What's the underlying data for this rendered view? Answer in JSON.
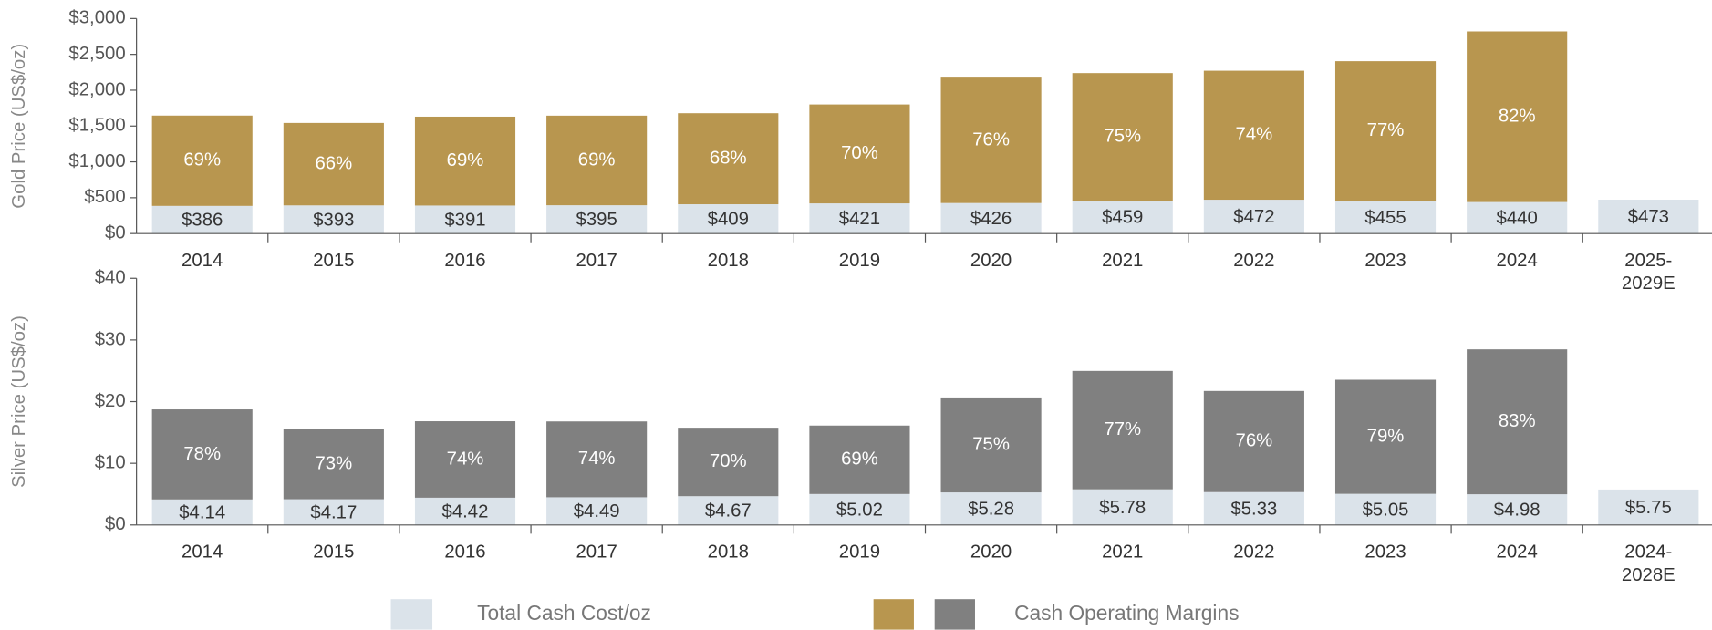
{
  "chart_data": [
    {
      "type": "stacked_bar",
      "ylabel": "Gold Price (US$/oz)",
      "categories": [
        "2014",
        "2015",
        "2016",
        "2017",
        "2018",
        "2019",
        "2020",
        "2021",
        "2022",
        "2023",
        "2024",
        "2025-\n2029E"
      ],
      "ylim": [
        0,
        3000
      ],
      "yticks": [
        {
          "value": 0,
          "label": "$0"
        },
        {
          "value": 500,
          "label": "$500"
        },
        {
          "value": 1000,
          "label": "$1,000"
        },
        {
          "value": 1500,
          "label": "$1,500"
        },
        {
          "value": 2000,
          "label": "$2,000"
        },
        {
          "value": 2500,
          "label": "$2,500"
        },
        {
          "value": 3000,
          "label": "$3,000"
        }
      ],
      "series": [
        {
          "name": "Total Cash Cost/oz",
          "color": "#dbe3ea",
          "values": [
            386,
            393,
            391,
            395,
            409,
            421,
            426,
            459,
            472,
            455,
            440,
            473
          ],
          "value_labels": [
            "$386",
            "$393",
            "$391",
            "$395",
            "$409",
            "$421",
            "$426",
            "$459",
            "$472",
            "$455",
            "$440",
            "$473"
          ]
        },
        {
          "name": "Cash Operating Margins",
          "color": "#b8964f",
          "values": [
            1260,
            1150,
            1240,
            1250,
            1270,
            1380,
            1750,
            1780,
            1800,
            1950,
            2380,
            null
          ],
          "percent_labels": [
            "69%",
            "66%",
            "69%",
            "69%",
            "68%",
            "70%",
            "76%",
            "75%",
            "74%",
            "77%",
            "82%",
            null
          ]
        }
      ]
    },
    {
      "type": "stacked_bar",
      "ylabel": "Silver Price (US$/oz)",
      "categories": [
        "2014",
        "2015",
        "2016",
        "2017",
        "2018",
        "2019",
        "2020",
        "2021",
        "2022",
        "2023",
        "2024",
        "2024-\n2028E"
      ],
      "ylim": [
        0,
        40
      ],
      "yticks": [
        {
          "value": 0,
          "label": "$0"
        },
        {
          "value": 10,
          "label": "$10"
        },
        {
          "value": 20,
          "label": "$20"
        },
        {
          "value": 30,
          "label": "$30"
        },
        {
          "value": 40,
          "label": "$40"
        }
      ],
      "series": [
        {
          "name": "Total Cash Cost/oz",
          "color": "#dbe3ea",
          "values": [
            4.14,
            4.17,
            4.42,
            4.49,
            4.67,
            5.02,
            5.28,
            5.78,
            5.33,
            5.05,
            4.98,
            5.75
          ],
          "value_labels": [
            "$4.14",
            "$4.17",
            "$4.42",
            "$4.49",
            "$4.67",
            "$5.02",
            "$5.28",
            "$5.78",
            "$5.33",
            "$5.05",
            "$4.98",
            "$5.75"
          ]
        },
        {
          "name": "Cash Operating Margins",
          "color": "#808080",
          "values": [
            14.6,
            11.4,
            12.4,
            12.3,
            11.1,
            11.1,
            15.4,
            19.2,
            16.4,
            18.5,
            23.5,
            null
          ],
          "percent_labels": [
            "78%",
            "73%",
            "74%",
            "74%",
            "70%",
            "69%",
            "75%",
            "77%",
            "76%",
            "79%",
            "83%",
            null
          ]
        }
      ]
    }
  ]
}
